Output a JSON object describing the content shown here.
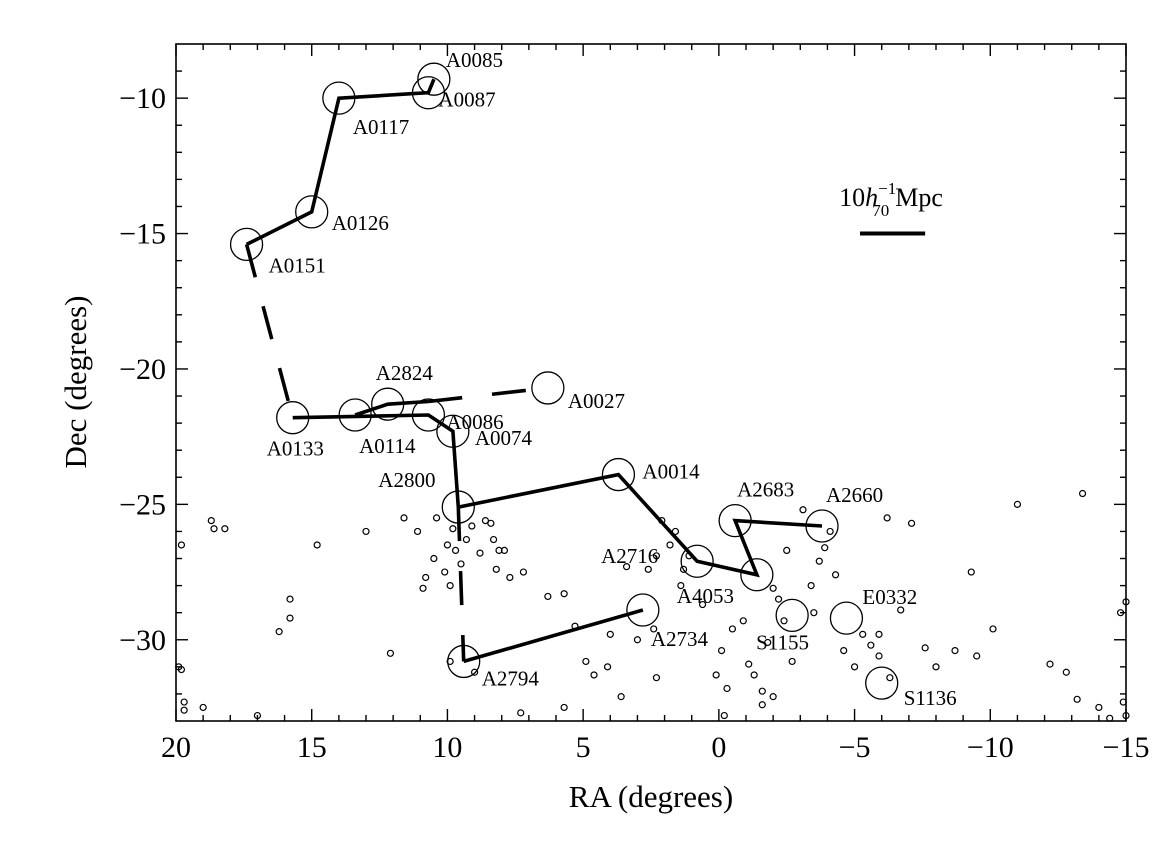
{
  "chart_data": {
    "type": "scatter",
    "title": "",
    "xlabel": "RA (degrees)",
    "ylabel": "Dec (degrees)",
    "xlim": [
      20,
      -15
    ],
    "ylim": [
      -33,
      -8
    ],
    "xticks": [
      20,
      15,
      10,
      5,
      0,
      -5,
      -10,
      -15
    ],
    "xtick_labels": [
      "20",
      "15",
      "10",
      "5",
      "0",
      "−5",
      "−10",
      "−15"
    ],
    "yticks": [
      -10,
      -15,
      -20,
      -25,
      -30
    ],
    "ytick_labels": [
      "−10",
      "−15",
      "−20",
      "−25",
      "−30"
    ],
    "grid": false,
    "scale_bar": {
      "prefix": "10",
      "h": "h",
      "sup": "−1",
      "sub": "70",
      "unit": "Mpc",
      "ra_start": -5.2,
      "ra_end": -7.6,
      "dec": -15.0
    },
    "clusters": [
      {
        "name": "A0085",
        "ra": 10.5,
        "dec": -9.3,
        "label": "A0085"
      },
      {
        "name": "A0087",
        "ra": 10.7,
        "dec": -9.8,
        "label": "A0087"
      },
      {
        "name": "A0117",
        "ra": 14.0,
        "dec": -10.0,
        "label": "A0117"
      },
      {
        "name": "A0126",
        "ra": 15.0,
        "dec": -14.2,
        "label": "A0126"
      },
      {
        "name": "A0151",
        "ra": 17.4,
        "dec": -15.4,
        "label": "A0151"
      },
      {
        "name": "A0133",
        "ra": 15.7,
        "dec": -21.8,
        "label": "A0133"
      },
      {
        "name": "A0114",
        "ra": 13.4,
        "dec": -21.7,
        "label": "A0114"
      },
      {
        "name": "A2824",
        "ra": 12.2,
        "dec": -21.3,
        "label": "A2824"
      },
      {
        "name": "A0086",
        "ra": 10.7,
        "dec": -21.7,
        "label": "A0086"
      },
      {
        "name": "A0074",
        "ra": 9.8,
        "dec": -22.3,
        "label": "A0074"
      },
      {
        "name": "A0027",
        "ra": 6.3,
        "dec": -20.7,
        "label": "A0027"
      },
      {
        "name": "A2800",
        "ra": 9.6,
        "dec": -25.1,
        "label": "A2800"
      },
      {
        "name": "A0014",
        "ra": 3.7,
        "dec": -23.9,
        "label": "A0014"
      },
      {
        "name": "A2716",
        "ra": 0.8,
        "dec": -27.1,
        "label": "A2716"
      },
      {
        "name": "A4053",
        "ra": -1.4,
        "dec": -27.6,
        "label": "A4053"
      },
      {
        "name": "A2683",
        "ra": -0.6,
        "dec": -25.6,
        "label": "A2683"
      },
      {
        "name": "A2660",
        "ra": -3.8,
        "dec": -25.8,
        "label": "A2660"
      },
      {
        "name": "A2734",
        "ra": 2.8,
        "dec": -28.9,
        "label": "A2734"
      },
      {
        "name": "A2794",
        "ra": 9.4,
        "dec": -30.8,
        "label": "A2794"
      },
      {
        "name": "S1155",
        "ra": -2.7,
        "dec": -29.1,
        "label": "S1155"
      },
      {
        "name": "E0332",
        "ra": -4.7,
        "dec": -29.2,
        "label": "E0332"
      },
      {
        "name": "S1136",
        "ra": -6.0,
        "dec": -31.6,
        "label": "S1136"
      }
    ],
    "filaments": [
      {
        "style": "solid",
        "points": [
          [
            10.5,
            -9.3
          ],
          [
            10.7,
            -9.8
          ],
          [
            14.0,
            -10.0
          ],
          [
            15.0,
            -14.2
          ],
          [
            17.4,
            -15.4
          ]
        ]
      },
      {
        "style": "dashed",
        "points": [
          [
            17.4,
            -15.4
          ],
          [
            15.7,
            -21.8
          ]
        ]
      },
      {
        "style": "solid",
        "points": [
          [
            15.7,
            -21.8
          ],
          [
            10.7,
            -21.7
          ],
          [
            9.8,
            -22.3
          ],
          [
            9.6,
            -25.1
          ]
        ]
      },
      {
        "style": "solid",
        "points": [
          [
            13.4,
            -21.7
          ],
          [
            12.2,
            -21.3
          ],
          [
            10.7,
            -21.2
          ]
        ]
      },
      {
        "style": "dashed",
        "points": [
          [
            10.7,
            -21.2
          ],
          [
            6.3,
            -20.7
          ]
        ]
      },
      {
        "style": "solid",
        "points": [
          [
            9.6,
            -25.1
          ],
          [
            3.7,
            -23.9
          ],
          [
            0.8,
            -27.1
          ],
          [
            -1.4,
            -27.6
          ],
          [
            -0.6,
            -25.6
          ],
          [
            -3.8,
            -25.8
          ]
        ]
      },
      {
        "style": "dashed",
        "points": [
          [
            9.6,
            -25.1
          ],
          [
            9.4,
            -30.8
          ]
        ]
      },
      {
        "style": "solid",
        "points": [
          [
            9.4,
            -30.8
          ],
          [
            2.8,
            -28.9
          ]
        ]
      }
    ],
    "background_galaxies": [
      [
        19.8,
        -26.5
      ],
      [
        18.7,
        -25.6
      ],
      [
        18.6,
        -25.9
      ],
      [
        18.2,
        -25.9
      ],
      [
        19.9,
        -31.0
      ],
      [
        19.8,
        -31.1
      ],
      [
        19.7,
        -32.3
      ],
      [
        19.7,
        -32.6
      ],
      [
        19.0,
        -32.5
      ],
      [
        17.0,
        -32.8
      ],
      [
        15.8,
        -28.5
      ],
      [
        15.8,
        -29.2
      ],
      [
        16.2,
        -29.7
      ],
      [
        14.8,
        -26.5
      ],
      [
        13.0,
        -26.0
      ],
      [
        12.1,
        -30.5
      ],
      [
        11.6,
        -25.5
      ],
      [
        11.1,
        -26.0
      ],
      [
        10.9,
        -28.1
      ],
      [
        10.8,
        -27.7
      ],
      [
        10.5,
        -27.0
      ],
      [
        10.4,
        -25.5
      ],
      [
        10.1,
        -27.5
      ],
      [
        10.0,
        -26.5
      ],
      [
        9.9,
        -28.0
      ],
      [
        9.8,
        -25.9
      ],
      [
        9.7,
        -26.7
      ],
      [
        9.5,
        -27.2
      ],
      [
        9.3,
        -26.3
      ],
      [
        9.1,
        -25.8
      ],
      [
        8.8,
        -26.8
      ],
      [
        8.6,
        -25.6
      ],
      [
        8.4,
        -25.7
      ],
      [
        8.3,
        -26.3
      ],
      [
        8.2,
        -27.4
      ],
      [
        8.1,
        -26.7
      ],
      [
        7.9,
        -26.7
      ],
      [
        7.7,
        -27.7
      ],
      [
        7.2,
        -27.5
      ],
      [
        9.9,
        -30.8
      ],
      [
        9.0,
        -31.2
      ],
      [
        5.7,
        -28.3
      ],
      [
        5.3,
        -29.5
      ],
      [
        4.9,
        -30.8
      ],
      [
        4.6,
        -31.3
      ],
      [
        4.1,
        -31.0
      ],
      [
        4.0,
        -29.8
      ],
      [
        3.6,
        -32.1
      ],
      [
        3.4,
        -27.3
      ],
      [
        3.0,
        -30.0
      ],
      [
        2.4,
        -29.6
      ],
      [
        2.3,
        -31.4
      ],
      [
        2.6,
        -27.4
      ],
      [
        2.3,
        -26.9
      ],
      [
        2.1,
        -25.6
      ],
      [
        1.8,
        -26.5
      ],
      [
        1.6,
        -26.0
      ],
      [
        1.3,
        -27.4
      ],
      [
        1.4,
        -28.0
      ],
      [
        1.1,
        -26.9
      ],
      [
        0.6,
        -28.7
      ],
      [
        -0.1,
        -30.4
      ],
      [
        -0.3,
        -31.8
      ],
      [
        -0.5,
        -29.6
      ],
      [
        -0.9,
        -29.3
      ],
      [
        -1.1,
        -30.9
      ],
      [
        -1.3,
        -31.3
      ],
      [
        -1.6,
        -31.9
      ],
      [
        -1.8,
        -30.1
      ],
      [
        -2.0,
        -28.1
      ],
      [
        -2.2,
        -28.5
      ],
      [
        -2.4,
        -29.3
      ],
      [
        -2.5,
        -26.7
      ],
      [
        -2.7,
        -30.8
      ],
      [
        -3.1,
        -25.2
      ],
      [
        -3.4,
        -28.0
      ],
      [
        -3.5,
        -29.0
      ],
      [
        -3.7,
        -27.1
      ],
      [
        -3.9,
        -26.6
      ],
      [
        -4.1,
        -26.0
      ],
      [
        -4.3,
        -27.6
      ],
      [
        -4.6,
        -30.4
      ],
      [
        -5.0,
        -31.0
      ],
      [
        -5.3,
        -29.8
      ],
      [
        -5.6,
        -30.2
      ],
      [
        -5.9,
        -29.8
      ],
      [
        -5.9,
        -30.6
      ],
      [
        -6.2,
        -25.5
      ],
      [
        -6.3,
        -31.4
      ],
      [
        -6.7,
        -28.9
      ],
      [
        -7.1,
        -25.7
      ],
      [
        -7.6,
        -30.3
      ],
      [
        -8.0,
        -31.0
      ],
      [
        -8.7,
        -30.4
      ],
      [
        -9.3,
        -27.5
      ],
      [
        -9.5,
        -30.6
      ],
      [
        -10.1,
        -29.6
      ],
      [
        -11.0,
        -25.0
      ],
      [
        -12.2,
        -30.9
      ],
      [
        -12.8,
        -31.2
      ],
      [
        -13.2,
        -32.2
      ],
      [
        -13.4,
        -24.6
      ],
      [
        -14.0,
        -32.5
      ],
      [
        -14.4,
        -32.9
      ],
      [
        -14.8,
        -29.0
      ],
      [
        -15.0,
        -28.6
      ],
      [
        -14.9,
        -32.3
      ],
      [
        -15.0,
        -32.8
      ],
      [
        0.1,
        -31.3
      ],
      [
        -0.2,
        -32.8
      ],
      [
        -1.6,
        -32.4
      ],
      [
        -2.0,
        -32.1
      ],
      [
        6.3,
        -28.4
      ],
      [
        7.3,
        -32.7
      ],
      [
        5.7,
        -32.5
      ]
    ]
  }
}
